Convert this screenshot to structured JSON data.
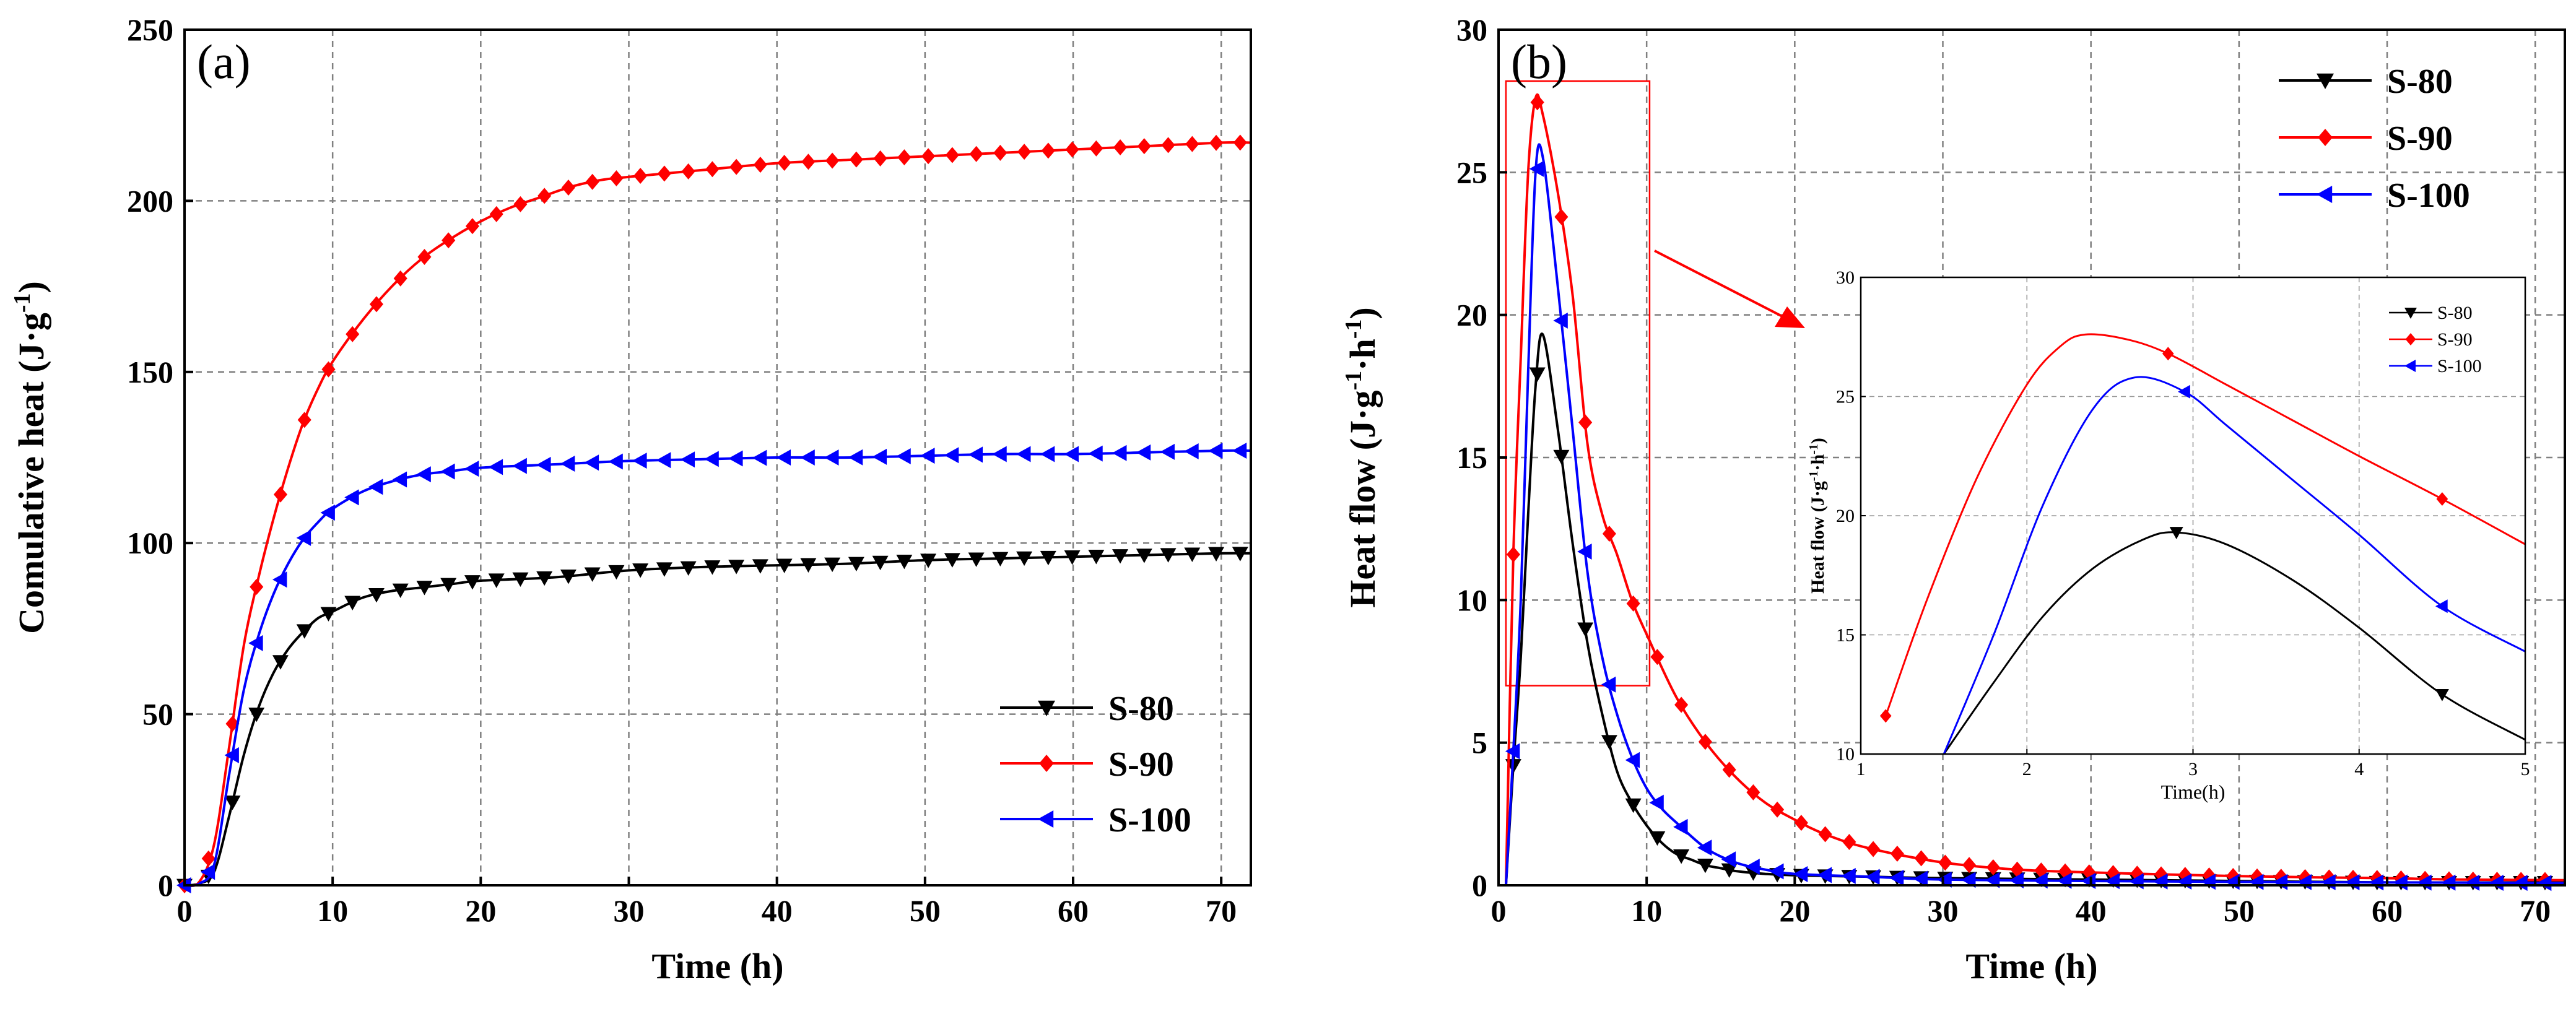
{
  "colors": {
    "S-80": "#000000",
    "S-90": "#ff0000",
    "S-100": "#0000ff"
  },
  "chart_data": [
    {
      "panel": "(a)",
      "type": "line",
      "xlabel": "Time (h)",
      "ylabel_parts": [
        "Comulative heat (J·g",
        "-1",
        ")"
      ],
      "xlim": [
        0,
        72
      ],
      "ylim": [
        0,
        250
      ],
      "xticks": [
        0,
        10,
        20,
        30,
        40,
        50,
        60,
        70
      ],
      "yticks": [
        0,
        50,
        100,
        150,
        200,
        250
      ],
      "grid": true,
      "legend_position": "bottom-right",
      "series": [
        {
          "name": "S-80",
          "marker": "triangle-down",
          "x": [
            0,
            1,
            2,
            3,
            4,
            5,
            6,
            7,
            8,
            9,
            10,
            12,
            14,
            16,
            18,
            20,
            25,
            30,
            35,
            40,
            45,
            50,
            55,
            60,
            65,
            70,
            72
          ],
          "y": [
            0,
            0.5,
            4,
            20,
            38,
            52,
            62,
            69,
            74,
            78,
            80,
            84,
            86,
            87,
            88,
            89,
            90,
            92,
            93,
            93.5,
            94,
            95,
            95.5,
            96,
            96.5,
            97,
            97
          ]
        },
        {
          "name": "S-90",
          "marker": "diamond",
          "x": [
            0,
            1,
            2,
            3,
            4,
            5,
            6,
            7,
            8,
            9,
            10,
            12,
            14,
            16,
            18,
            20,
            22,
            24,
            26,
            28,
            30,
            35,
            40,
            45,
            50,
            55,
            60,
            65,
            70,
            72
          ],
          "y": [
            0,
            1,
            12,
            40,
            70,
            90,
            107,
            122,
            135,
            145,
            153,
            165,
            175,
            183,
            189,
            194,
            198,
            201,
            204,
            206,
            207,
            209,
            211,
            212,
            213,
            214,
            215,
            216,
            217,
            217
          ]
        },
        {
          "name": "S-100",
          "marker": "triangle-left",
          "x": [
            0,
            1,
            2,
            3,
            4,
            5,
            6,
            7,
            8,
            9,
            10,
            12,
            14,
            16,
            18,
            20,
            25,
            30,
            35,
            40,
            45,
            50,
            55,
            60,
            65,
            70,
            72
          ],
          "y": [
            0,
            0.5,
            6,
            32,
            57,
            73,
            85,
            94,
            101,
            106,
            110,
            115,
            118,
            120,
            121,
            122,
            123,
            124,
            124.5,
            125,
            125,
            125.5,
            126,
            126,
            126.5,
            127,
            127
          ]
        }
      ]
    },
    {
      "panel": "(b)",
      "type": "line",
      "xlabel": "Time (h)",
      "ylabel_parts": [
        "Heat flow (J·g",
        "-1",
        "·h",
        "-1",
        ")"
      ],
      "xlim": [
        0,
        72
      ],
      "ylim": [
        0,
        30
      ],
      "xticks": [
        0,
        10,
        20,
        30,
        40,
        50,
        60,
        70
      ],
      "yticks": [
        0,
        5,
        10,
        15,
        20,
        25,
        30
      ],
      "grid": true,
      "legend_position": "top-right",
      "highlight_box": {
        "x": [
          0.5,
          10.2
        ],
        "y": [
          7,
          28.2
        ]
      },
      "series": [
        {
          "name": "S-80",
          "marker": "triangle-down",
          "x": [
            0.5,
            1,
            1.5,
            2,
            2.5,
            3,
            4,
            5,
            6,
            7,
            8,
            9,
            10,
            11,
            12,
            13,
            14,
            15,
            16,
            18,
            20,
            25,
            30,
            40,
            50,
            60,
            72
          ],
          "y": [
            0,
            4.2,
            8,
            13,
            17.5,
            19.3,
            16,
            12,
            8.5,
            6,
            4,
            2.9,
            2.1,
            1.5,
            1.1,
            0.9,
            0.7,
            0.6,
            0.5,
            0.4,
            0.35,
            0.3,
            0.25,
            0.2,
            0.15,
            0.1,
            0.1
          ]
        },
        {
          "name": "S-90",
          "marker": "diamond",
          "x": [
            0.5,
            1,
            1.5,
            2,
            2.5,
            3,
            4,
            5,
            6,
            7,
            8,
            9,
            10,
            12,
            14,
            16,
            18,
            20,
            22,
            25,
            30,
            35,
            40,
            45,
            50,
            55,
            60,
            65,
            72
          ],
          "y": [
            0,
            11.6,
            18.5,
            25,
            27.6,
            27,
            24.3,
            20.7,
            15.5,
            13,
            11.6,
            10,
            8.8,
            6.6,
            5,
            3.8,
            2.9,
            2.3,
            1.8,
            1.3,
            0.8,
            0.55,
            0.45,
            0.38,
            0.32,
            0.28,
            0.25,
            0.2,
            0.18
          ]
        },
        {
          "name": "S-100",
          "marker": "triangle-left",
          "x": [
            0.5,
            1,
            1.5,
            2,
            2.5,
            3,
            4,
            5,
            6,
            7,
            8,
            9,
            10,
            11,
            12,
            14,
            16,
            18,
            20,
            25,
            30,
            40,
            50,
            60,
            72
          ],
          "y": [
            0,
            4.7,
            10,
            18,
            25,
            25.5,
            21,
            16,
            11,
            8,
            6,
            4.5,
            3.4,
            2.7,
            2.2,
            1.3,
            0.8,
            0.55,
            0.4,
            0.3,
            0.2,
            0.15,
            0.12,
            0.1,
            0.08
          ]
        }
      ],
      "inset": {
        "xlabel": "Time(h)",
        "ylabel_parts": [
          "Heat flow (J·g",
          "-1",
          "·h",
          "-1",
          ")"
        ],
        "xlim": [
          1,
          5
        ],
        "ylim": [
          10,
          30
        ],
        "xticks": [
          1,
          2,
          3,
          4,
          5
        ],
        "xtick_labels": [
          "1",
          "2",
          "3",
          "4",
          "5"
        ],
        "yticks": [
          10,
          15,
          20,
          25,
          30
        ],
        "legend_position": "top-right",
        "series": [
          {
            "name": "S-80",
            "marker": "triangle-down",
            "x": [
              1.5,
              1.8,
              2.1,
              2.4,
              2.7,
              2.9,
              3.2,
              3.6,
              4.0,
              4.5,
              5.0
            ],
            "y": [
              10,
              13,
              15.8,
              17.8,
              19,
              19.3,
              18.8,
              17.3,
              15.3,
              12.5,
              10.6
            ],
            "marker_x": [
              2.9,
              4.5
            ]
          },
          {
            "name": "S-90",
            "marker": "diamond",
            "x": [
              1.15,
              1.4,
              1.7,
              2.0,
              2.2,
              2.35,
              2.6,
              2.85,
              3.2,
              3.6,
              4.0,
              4.5,
              5.0
            ],
            "y": [
              11.6,
              16.5,
              21.6,
              25.5,
              27.1,
              27.6,
              27.4,
              26.8,
              25.5,
              24,
              22.5,
              20.7,
              18.8
            ],
            "marker_x": [
              1.15,
              2.85,
              4.5
            ]
          },
          {
            "name": "S-100",
            "marker": "triangle-left",
            "x": [
              1.5,
              1.8,
              2.1,
              2.4,
              2.65,
              2.95,
              3.2,
              3.6,
              4.0,
              4.5,
              5.0
            ],
            "y": [
              10,
              15,
              20.5,
              24.5,
              25.8,
              25.2,
              23.8,
              21.5,
              19.2,
              16.2,
              14.3
            ],
            "marker_x": [
              2.95,
              4.5
            ]
          }
        ]
      }
    }
  ]
}
